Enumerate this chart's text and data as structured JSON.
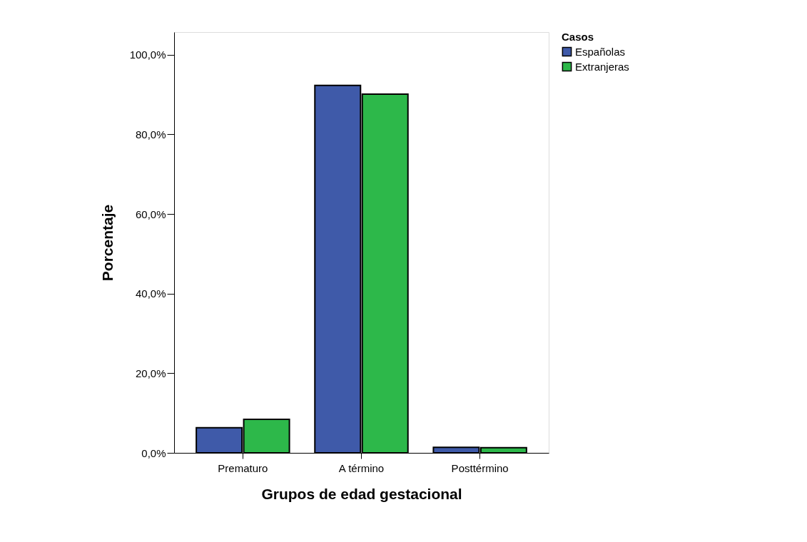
{
  "chart_data": {
    "type": "bar",
    "xlabel": "Grupos de edad gestacional",
    "ylabel": "Porcentaje",
    "legend_title": "Casos",
    "categories": [
      "Prematuro",
      "A término",
      "Posttérmino"
    ],
    "series": [
      {
        "name": "Españolas",
        "color": "#3f5aa9",
        "values": [
          6.3,
          92.3,
          1.4
        ]
      },
      {
        "name": "Extranjeras",
        "color": "#2db84a",
        "values": [
          8.4,
          90.1,
          1.3
        ]
      }
    ],
    "ylim": [
      0,
      105.7
    ],
    "yticks": [
      {
        "value": 0,
        "label": "0,0%"
      },
      {
        "value": 20,
        "label": "20,0%"
      },
      {
        "value": 40,
        "label": "40,0%"
      },
      {
        "value": 60,
        "label": "60,0%"
      },
      {
        "value": 80,
        "label": "80,0%"
      },
      {
        "value": 100,
        "label": "100,0%"
      }
    ],
    "grid": false,
    "legend": "right"
  }
}
